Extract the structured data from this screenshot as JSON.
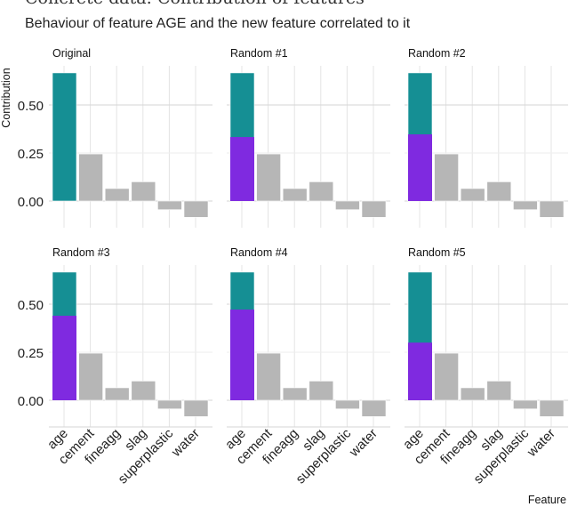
{
  "chart_data": {
    "type": "bar",
    "title": "Concrete data: Contribution of features",
    "subtitle": "Behaviour of feature AGE and the new feature correlated to it",
    "xlabel": "Feature",
    "ylabel": "Contribution",
    "categories": [
      "age",
      "cement",
      "fineagg",
      "slag",
      "superplastic",
      "water"
    ],
    "yticks": [
      "0.00",
      "0.25",
      "0.50"
    ],
    "ylim": [
      -0.12,
      0.72
    ],
    "grid": true,
    "colors": {
      "age": "#158f94",
      "new_feature": "#7f2ae0",
      "other": "#b6b6b6"
    },
    "panels": [
      {
        "label": "Original",
        "values": [
          0.667,
          0.245,
          0.065,
          0.1,
          -0.045,
          -0.085
        ],
        "new_feature_part": null
      },
      {
        "label": "Random #1",
        "values": [
          0.667,
          0.245,
          0.065,
          0.1,
          -0.045,
          -0.085
        ],
        "new_feature_part": 0.333
      },
      {
        "label": "Random #2",
        "values": [
          0.667,
          0.245,
          0.065,
          0.1,
          -0.045,
          -0.085
        ],
        "new_feature_part": 0.347
      },
      {
        "label": "Random #3",
        "values": [
          0.667,
          0.245,
          0.065,
          0.1,
          -0.045,
          -0.085
        ],
        "new_feature_part": 0.44
      },
      {
        "label": "Random #4",
        "values": [
          0.667,
          0.245,
          0.065,
          0.1,
          -0.045,
          -0.085
        ],
        "new_feature_part": 0.472
      },
      {
        "label": "Random #5",
        "values": [
          0.667,
          0.245,
          0.065,
          0.1,
          -0.045,
          -0.085
        ],
        "new_feature_part": 0.3
      }
    ]
  }
}
